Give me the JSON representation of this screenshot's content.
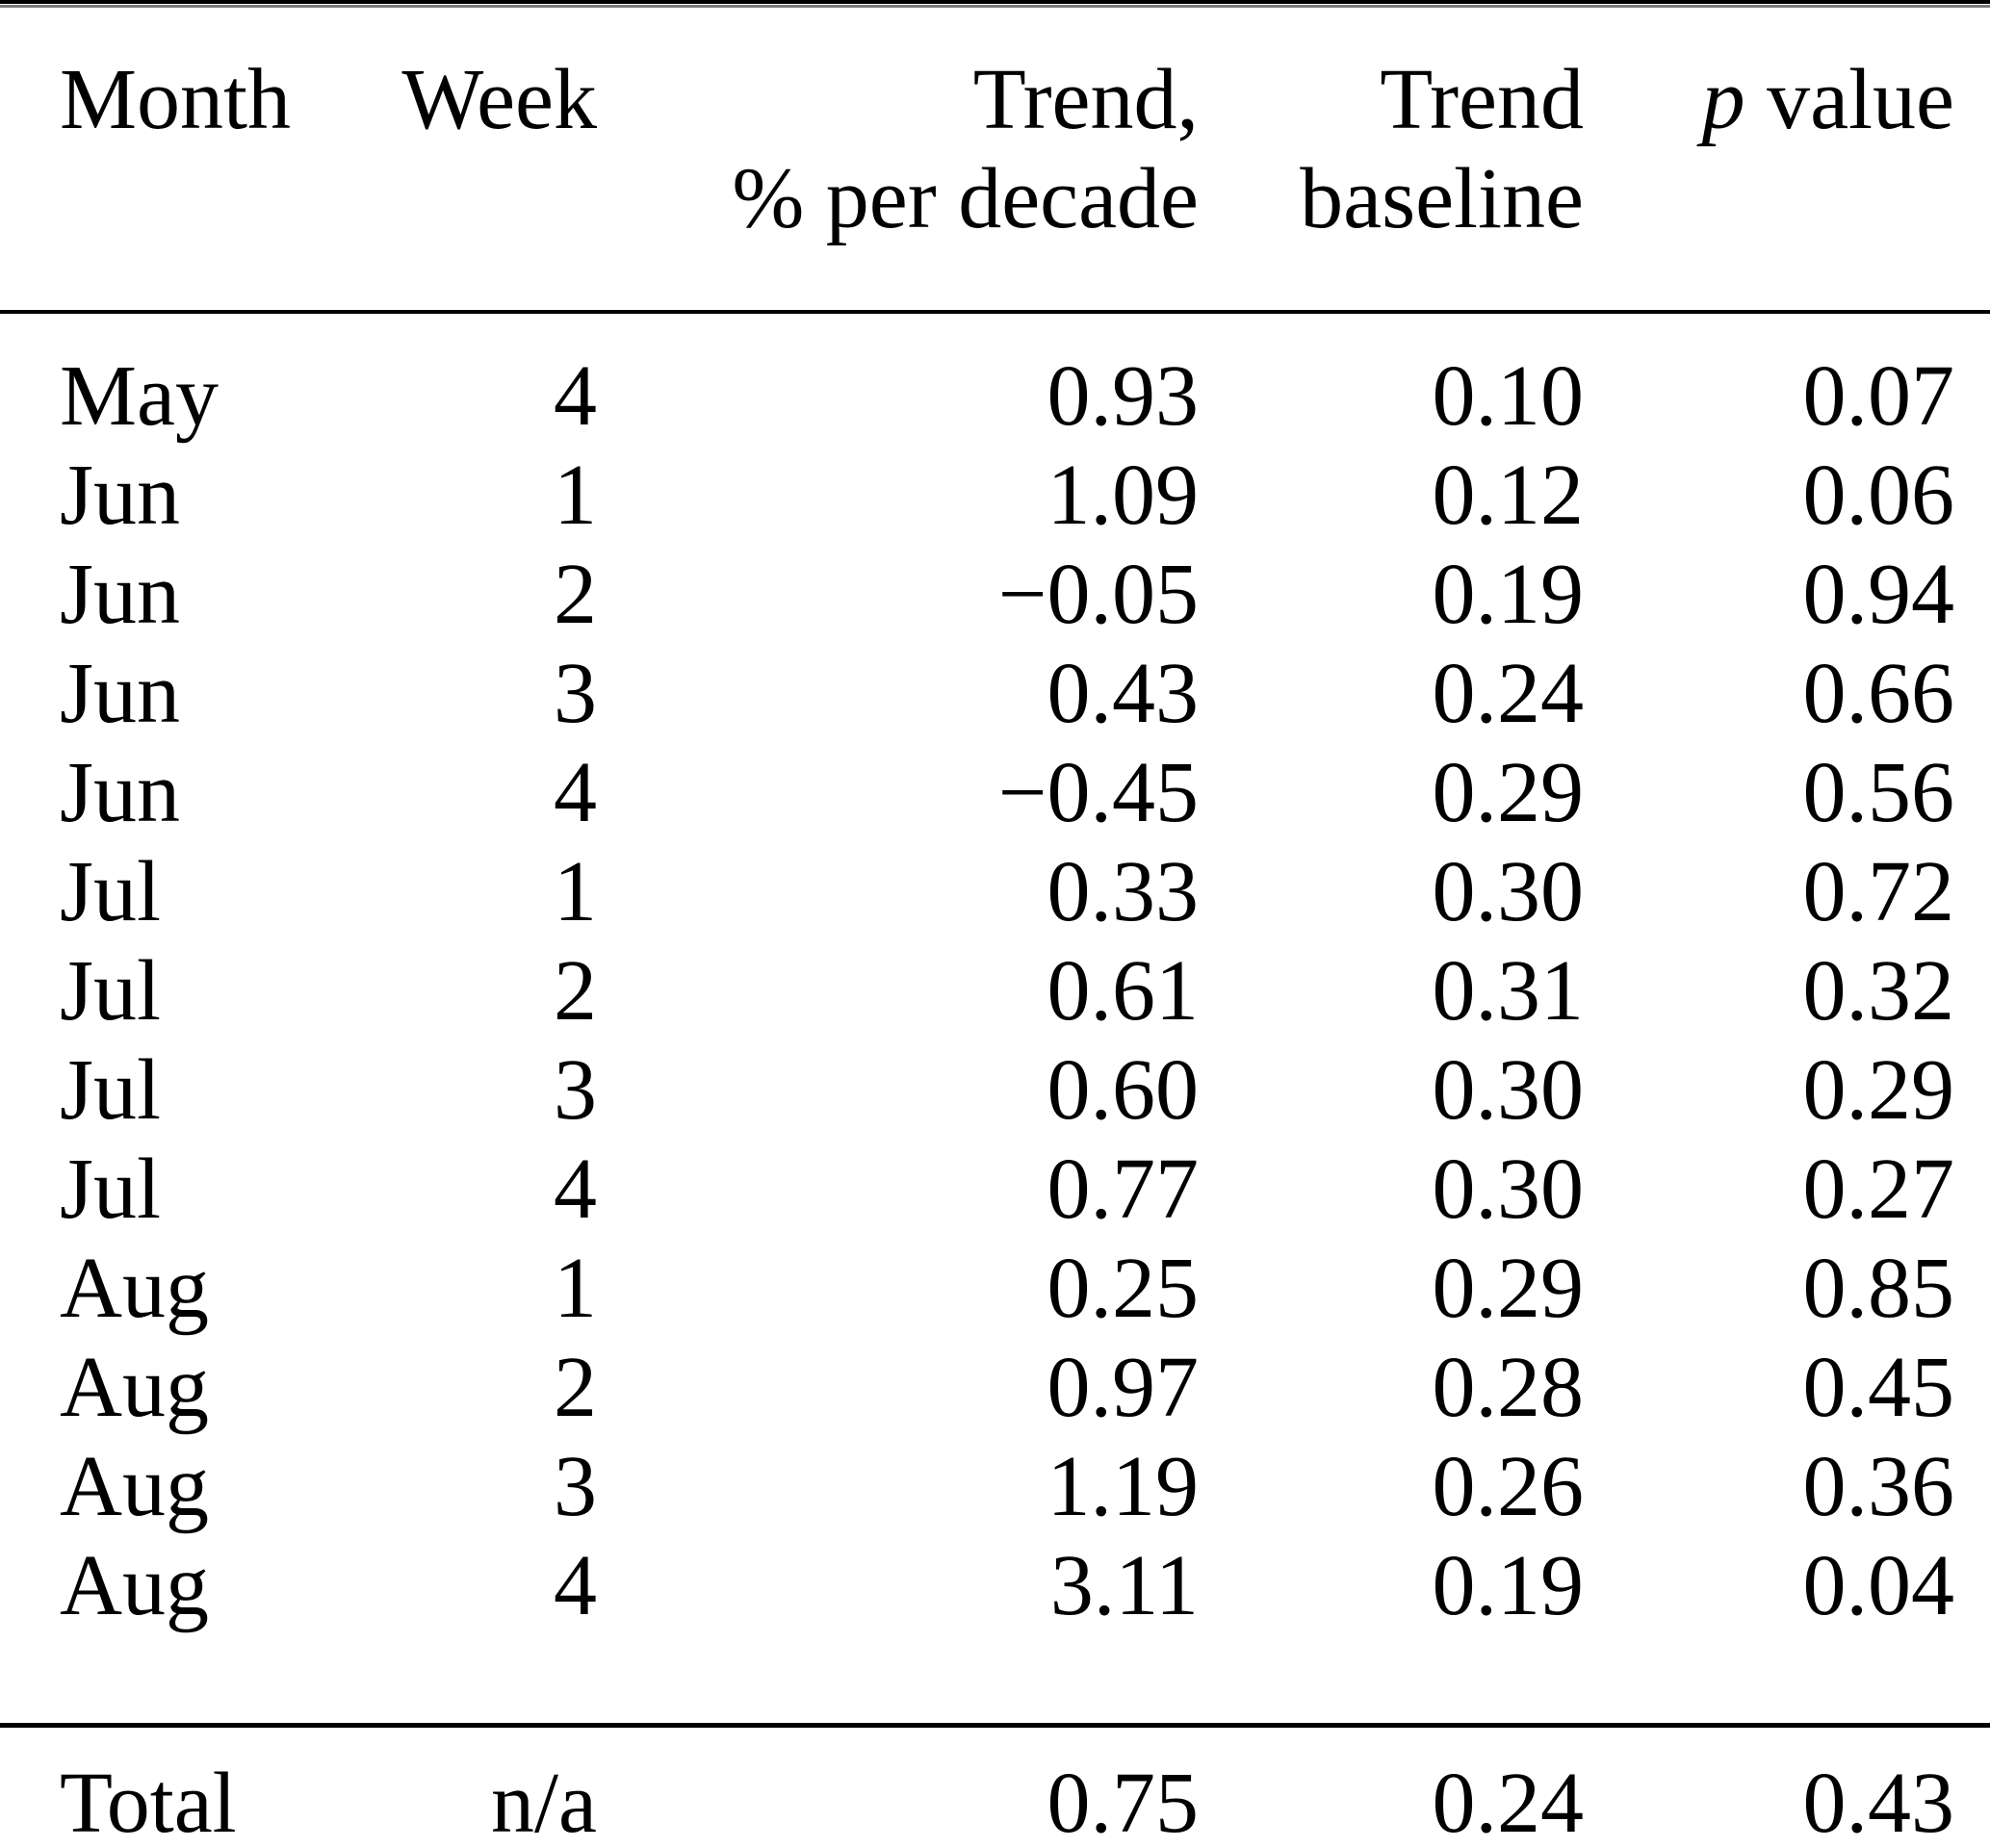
{
  "table": {
    "headers": {
      "month": "Month",
      "week": "Week",
      "trend_line1": "Trend,",
      "trend_line2": "% per decade",
      "baseline_line1": "Trend",
      "baseline_line2": "baseline",
      "p_italic": "p",
      "p_rest": " value"
    },
    "rows": [
      {
        "month": "May",
        "week": "4",
        "trend": "0.93",
        "baseline": "0.10",
        "p": "0.07"
      },
      {
        "month": "Jun",
        "week": "1",
        "trend": "1.09",
        "baseline": "0.12",
        "p": "0.06"
      },
      {
        "month": "Jun",
        "week": "2",
        "trend": "−0.05",
        "baseline": "0.19",
        "p": "0.94"
      },
      {
        "month": "Jun",
        "week": "3",
        "trend": "0.43",
        "baseline": "0.24",
        "p": "0.66"
      },
      {
        "month": "Jun",
        "week": "4",
        "trend": "−0.45",
        "baseline": "0.29",
        "p": "0.56"
      },
      {
        "month": "Jul",
        "week": "1",
        "trend": "0.33",
        "baseline": "0.30",
        "p": "0.72"
      },
      {
        "month": "Jul",
        "week": "2",
        "trend": "0.61",
        "baseline": "0.31",
        "p": "0.32"
      },
      {
        "month": "Jul",
        "week": "3",
        "trend": "0.60",
        "baseline": "0.30",
        "p": "0.29"
      },
      {
        "month": "Jul",
        "week": "4",
        "trend": "0.77",
        "baseline": "0.30",
        "p": "0.27"
      },
      {
        "month": "Aug",
        "week": "1",
        "trend": "0.25",
        "baseline": "0.29",
        "p": "0.85"
      },
      {
        "month": "Aug",
        "week": "2",
        "trend": "0.97",
        "baseline": "0.28",
        "p": "0.45"
      },
      {
        "month": "Aug",
        "week": "3",
        "trend": "1.19",
        "baseline": "0.26",
        "p": "0.36"
      },
      {
        "month": "Aug",
        "week": "4",
        "trend": "3.11",
        "baseline": "0.19",
        "p": "0.04"
      }
    ],
    "total": {
      "month": "Total",
      "week": "n/a",
      "trend": "0.75",
      "baseline": "0.24",
      "p": "0.43"
    },
    "colors": {
      "text": "#000000",
      "background": "#ffffff",
      "rule": "#000000"
    }
  }
}
